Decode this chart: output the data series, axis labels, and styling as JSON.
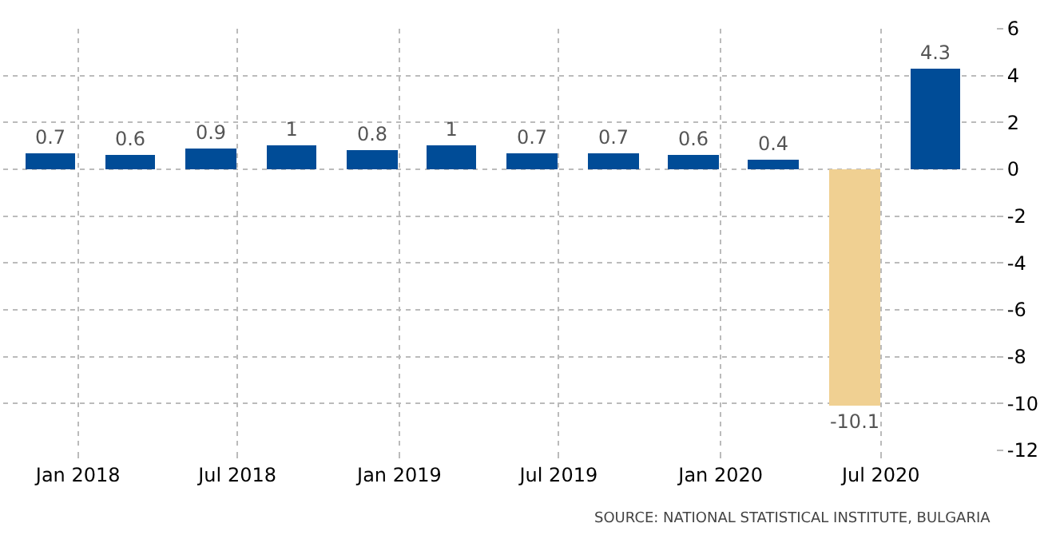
{
  "chart_data": {
    "type": "bar",
    "x": [
      "2017-12",
      "2018-03",
      "2018-06",
      "2018-09",
      "2018-12",
      "2019-03",
      "2019-06",
      "2019-09",
      "2019-12",
      "2020-03",
      "2020-06",
      "2020-09"
    ],
    "values": [
      0.7,
      0.6,
      0.9,
      1,
      0.8,
      1,
      0.7,
      0.7,
      0.6,
      0.4,
      -10.1,
      4.3
    ],
    "colors": [
      "#004c97",
      "#004c97",
      "#004c97",
      "#004c97",
      "#004c97",
      "#004c97",
      "#004c97",
      "#004c97",
      "#004c97",
      "#004c97",
      "#f0d092",
      "#004c97"
    ],
    "data_labels": true,
    "xlim": [
      "2017-10-08",
      "2020-11-08"
    ],
    "xticks": [
      {
        "value": "2018-01-01",
        "label": "Jan 2018"
      },
      {
        "value": "2018-07-01",
        "label": "Jul 2018"
      },
      {
        "value": "2019-01-01",
        "label": "Jan 2019"
      },
      {
        "value": "2019-07-01",
        "label": "Jul 2019"
      },
      {
        "value": "2020-01-01",
        "label": "Jan 2020"
      },
      {
        "value": "2020-07-01",
        "label": "Jul 2020"
      }
    ],
    "ylim": [
      -12,
      6
    ],
    "yticks": [
      -12,
      -10,
      -8,
      -6,
      -4,
      -2,
      0,
      2,
      4,
      6
    ],
    "grid": true,
    "annotations": [
      "SOURCE: NATIONAL STATISTICAL INSTITUTE, BULGARIA"
    ]
  }
}
